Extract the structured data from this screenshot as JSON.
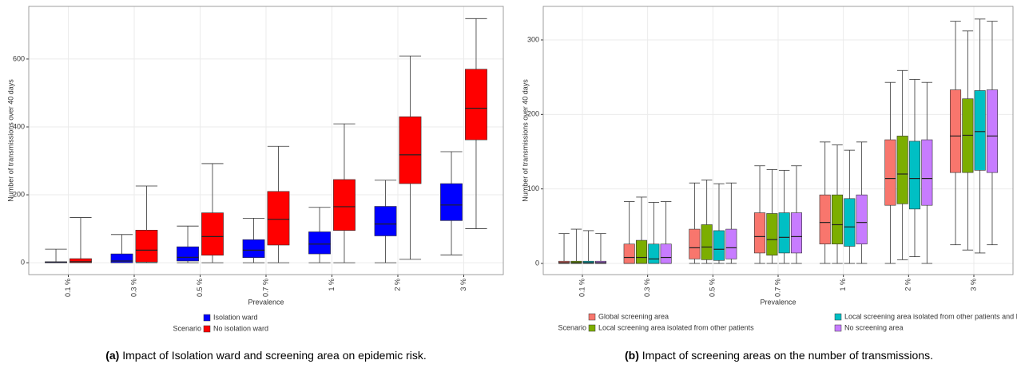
{
  "chart_data": [
    {
      "type": "box",
      "y_label": "Number of transmissions over 40 days",
      "x_label": "Prevalence",
      "legend_title": "Scenario",
      "caption_label": "(a)",
      "caption": "Impact of Isolation ward and screening area on epidemic risk.",
      "categories": [
        "0.1 %",
        "0.3 %",
        "0.5 %",
        "0.7 %",
        "1 %",
        "2 %",
        "3 %"
      ],
      "ylim": [
        -35,
        755
      ],
      "yticks": [
        0,
        200,
        400,
        600
      ],
      "grid": true,
      "legend_columns": 1,
      "series": [
        {
          "name": "Isolation ward",
          "color": "#0000ff",
          "values": [
            [
              0,
              0,
              1,
              3,
              40
            ],
            [
              0,
              0,
              5,
              26,
              83
            ],
            [
              0,
              5,
              16,
              47,
              108
            ],
            [
              0,
              15,
              37,
              68,
              131
            ],
            [
              0,
              26,
              55,
              91,
              163
            ],
            [
              0,
              79,
              114,
              166,
              243
            ],
            [
              23,
              124,
              170,
              233,
              327
            ]
          ]
        },
        {
          "name": "No isolation ward",
          "color": "#ff0000",
          "values": [
            [
              0,
              0,
              3,
              12,
              133
            ],
            [
              0,
              2,
              37,
              96,
              226
            ],
            [
              0,
              22,
              77,
              147,
              292
            ],
            [
              0,
              52,
              128,
              210,
              343
            ],
            [
              0,
              95,
              165,
              245,
              409
            ],
            [
              10,
              233,
              318,
              430,
              609
            ],
            [
              100,
              362,
              455,
              570,
              719
            ]
          ]
        }
      ]
    },
    {
      "type": "box",
      "y_label": "Number of transmissions over 40 days",
      "x_label": "Prevalence",
      "legend_title": "Scenario",
      "caption_label": "(b)",
      "caption": "Impact of screening areas on the number of transmissions.",
      "categories": [
        "0.1 %",
        "0.3 %",
        "0.5 %",
        "0.7 %",
        "1 %",
        "2 %",
        "3 %"
      ],
      "ylim": [
        -15,
        345
      ],
      "yticks": [
        0,
        100,
        200,
        300
      ],
      "grid": true,
      "legend_columns": 2,
      "series": [
        {
          "name": "Global screening area",
          "color": "#f8766d",
          "values": [
            [
              0,
              0,
              1,
              3,
              40
            ],
            [
              0,
              0,
              8,
              26,
              83
            ],
            [
              0,
              6,
              21,
              46,
              108
            ],
            [
              0,
              14,
              36,
              68,
              131
            ],
            [
              0,
              26,
              55,
              92,
              163
            ],
            [
              0,
              78,
              114,
              166,
              243
            ],
            [
              25,
              122,
              171,
              233,
              325
            ]
          ]
        },
        {
          "name": "Local screening area isolated from other patients",
          "color": "#7cae00",
          "values": [
            [
              0,
              0,
              1,
              3,
              46
            ],
            [
              0,
              0,
              8,
              31,
              89
            ],
            [
              0,
              5,
              22,
              52,
              112
            ],
            [
              0,
              11,
              32,
              67,
              126
            ],
            [
              0,
              26,
              52,
              92,
              159
            ],
            [
              5,
              80,
              120,
              171,
              259
            ],
            [
              18,
              122,
              172,
              221,
              312
            ]
          ]
        },
        {
          "name": "Local screening area isolated from other patients and HCWs",
          "color": "#00bfc4",
          "values": [
            [
              0,
              0,
              1,
              3,
              44
            ],
            [
              0,
              0,
              6,
              26,
              82
            ],
            [
              0,
              4,
              19,
              44,
              107
            ],
            [
              0,
              14,
              35,
              68,
              125
            ],
            [
              0,
              23,
              49,
              87,
              152
            ],
            [
              9,
              73,
              114,
              164,
              247
            ],
            [
              14,
              125,
              177,
              232,
              328
            ]
          ]
        },
        {
          "name": "No screening area",
          "color": "#c77cff",
          "values": [
            [
              0,
              0,
              1,
              3,
              40
            ],
            [
              0,
              0,
              8,
              26,
              83
            ],
            [
              0,
              6,
              21,
              46,
              108
            ],
            [
              0,
              14,
              36,
              68,
              131
            ],
            [
              0,
              26,
              55,
              92,
              163
            ],
            [
              0,
              78,
              114,
              166,
              243
            ],
            [
              25,
              122,
              171,
              233,
              325
            ]
          ]
        }
      ]
    }
  ]
}
